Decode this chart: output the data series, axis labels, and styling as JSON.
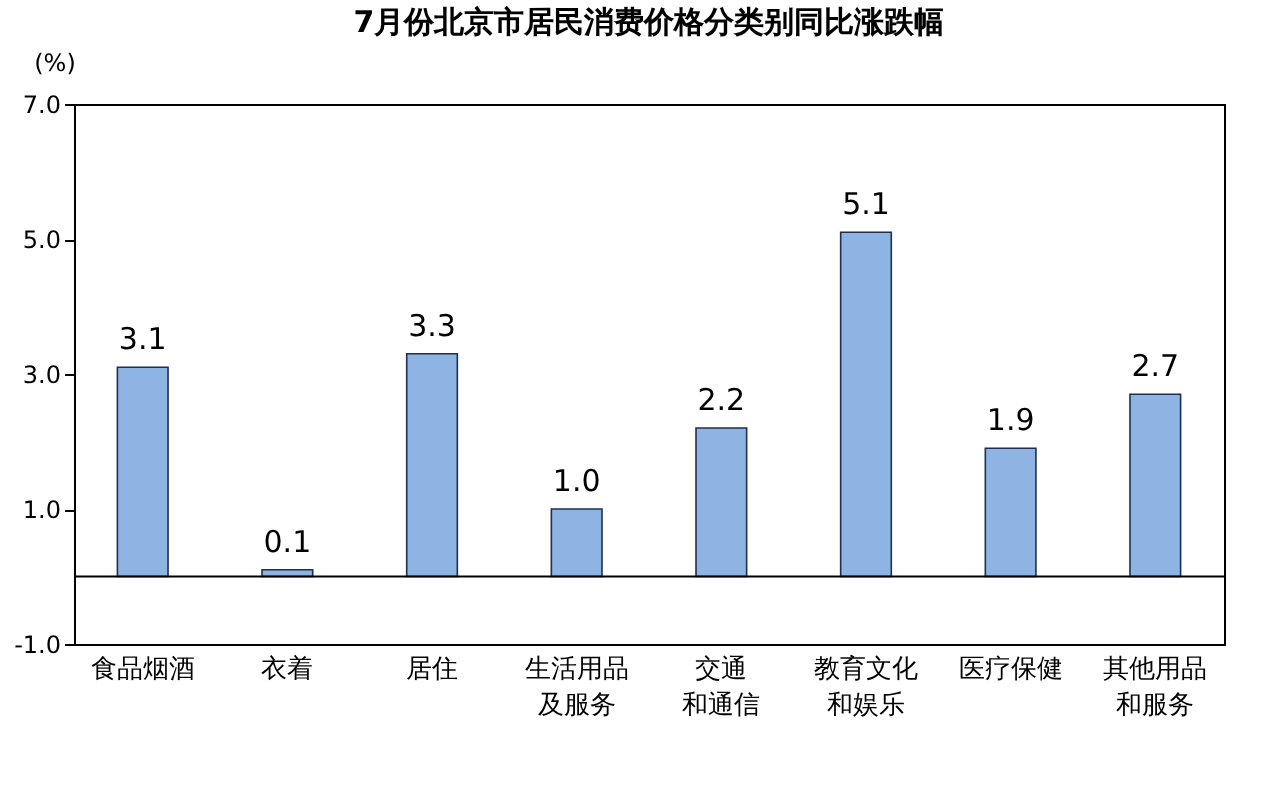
{
  "chart_data": {
    "type": "bar",
    "title": "7月份北京市居民消费价格分类别同比涨跌幅",
    "ylabel": "(%)",
    "categories": [
      "食品烟酒",
      "衣着",
      "居住",
      "生活用品及服务",
      "交通和通信",
      "教育文化和娱乐",
      "医疗保健",
      "其他用品和服务"
    ],
    "values": [
      3.1,
      0.1,
      3.3,
      1.0,
      2.2,
      5.1,
      1.9,
      2.7
    ],
    "color": "#8db4e2",
    "ylim": [
      -1,
      7
    ],
    "yticks": [
      {
        "value": -1,
        "label": "-1.0"
      },
      {
        "value": 1,
        "label": "1.0"
      },
      {
        "value": 3,
        "label": "3.0"
      },
      {
        "value": 5,
        "label": "5.0"
      },
      {
        "value": 7,
        "label": "7.0"
      }
    ],
    "ref_lines": [
      {
        "axis": "y",
        "value": 0,
        "color": "#000000"
      }
    ],
    "value_labels": [
      "3.1",
      "0.1",
      "3.3",
      "1.0",
      "2.2",
      "5.1",
      "1.9",
      "2.7"
    ],
    "grid": false
  }
}
